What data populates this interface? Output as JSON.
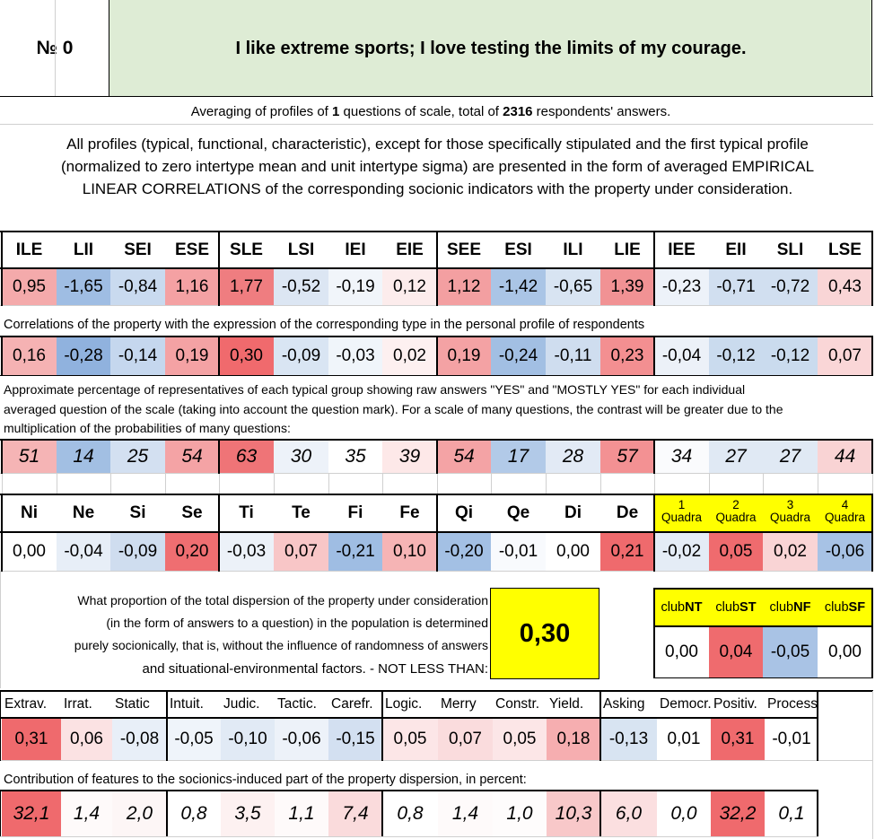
{
  "header": {
    "number_label": "№ 0",
    "question": "I like extreme sports; I love testing the limits of my courage."
  },
  "summary": {
    "prefix": "Averaging of profiles of ",
    "questions": "1",
    "middle": " questions of scale, total of ",
    "respondents": "2316",
    "suffix": " respondents' answers."
  },
  "description": [
    "All profiles (typical, functional, characteristic), except for those specifically stipulated and the first typical profile",
    "(normalized to zero intertype mean and unit intertype sigma) are presented in the form of averaged EMPIRICAL",
    "LINEAR CORRELATIONS of the corresponding socionic indicators with the property under consideration."
  ],
  "types": {
    "labels": [
      "ILE",
      "LII",
      "SEI",
      "ESE",
      "SLE",
      "LSI",
      "IEI",
      "EIE",
      "SEE",
      "ESI",
      "ILI",
      "LIE",
      "IEE",
      "EII",
      "SLI",
      "LSE"
    ],
    "values": [
      "0,95",
      "-1,65",
      "-0,84",
      "1,16",
      "1,77",
      "-0,52",
      "-0,19",
      "0,12",
      "1,12",
      "-1,42",
      "-0,65",
      "1,39",
      "-0,23",
      "-0,71",
      "-0,72",
      "0,43"
    ],
    "colors": [
      "#f4aaab",
      "#9fbde3",
      "#c9daef",
      "#f4a1a3",
      "#ef7d80",
      "#dce6f3",
      "#f1f5fa",
      "#fcecec",
      "#f39fa1",
      "#aac5e6",
      "#d8e4f2",
      "#f19294",
      "#edf2f9",
      "#d1dff0",
      "#d1dff0",
      "#f9d5d6"
    ]
  },
  "correlations": {
    "caption": "Correlations of the property with the expression of the corresponding type in the personal profile of respondents",
    "values": [
      "0,16",
      "-0,28",
      "-0,14",
      "0,19",
      "0,30",
      "-0,09",
      "-0,03",
      "0,02",
      "0,19",
      "-0,24",
      "-0,11",
      "0,23",
      "-0,04",
      "-0,12",
      "-0,12",
      "0,07"
    ],
    "colors": [
      "#f5b2b3",
      "#90b2de",
      "#c5d7ee",
      "#f4a2a4",
      "#f06a6d",
      "#d9e5f3",
      "#f0f5fa",
      "#fdf0f0",
      "#f4a2a4",
      "#a2bfe3",
      "#cfddef",
      "#f38f91",
      "#ecf1f8",
      "#cadbee",
      "#cadbee",
      "#fad6d7"
    ]
  },
  "percentages": {
    "caption_lines": [
      "Approximate percentage of representatives of each typical group showing raw answers \"YES\" and \"MOSTLY YES\" for each individual",
      "averaged question of the scale (taking into account the question mark). For a scale of many questions, the contrast will be greater due to the",
      "multiplication of the probabilities of many questions:"
    ],
    "values": [
      "51",
      "14",
      "25",
      "54",
      "63",
      "30",
      "35",
      "39",
      "54",
      "17",
      "28",
      "57",
      "34",
      "27",
      "27",
      "44"
    ],
    "colors": [
      "#f5b4b5",
      "#a2bfe3",
      "#d3e0f1",
      "#f4a3a5",
      "#ef7477",
      "#edf2f9",
      "#ffffff",
      "#fde8e8",
      "#f4a3a5",
      "#b2cae8",
      "#e2eaf5",
      "#f39193",
      "#fafbfd",
      "#e0e9f4",
      "#e0e9f4",
      "#f9d3d4"
    ]
  },
  "functions": {
    "labels": [
      "Ni",
      "Ne",
      "Si",
      "Se",
      "Ti",
      "Te",
      "Fi",
      "Fe",
      "Qi",
      "Qe",
      "Di",
      "De"
    ],
    "values": [
      "0,00",
      "-0,04",
      "-0,09",
      "0,20",
      "-0,03",
      "0,07",
      "-0,21",
      "0,10",
      "-0,20",
      "-0,01",
      "0,00",
      "0,21"
    ],
    "colors": [
      "#ffffff",
      "#e7eef7",
      "#cfddef",
      "#ef6e71",
      "#ecf1f8",
      "#f8c6c7",
      "#9fbde3",
      "#f6b4b5",
      "#a3c0e4",
      "#f8fafd",
      "#ffffff",
      "#ef6a6d"
    ]
  },
  "quadras": {
    "nums": [
      "1",
      "2",
      "3",
      "4"
    ],
    "word": "Quadra",
    "highlight": "#ffff00",
    "values": [
      "-0,02",
      "0,05",
      "0,02",
      "-0,06"
    ],
    "colors": [
      "#e4ecf6",
      "#ef6b6e",
      "#f9d4d5",
      "#a7c2e5"
    ]
  },
  "dispersion": {
    "lines": [
      "What proportion of the total dispersion of the property under consideration",
      "(in the form of answers to a question) in the population is determined",
      "purely socionically, that is, without the influence of randomness of answers",
      "and situational-environmental factors. - NOT LESS THAN:"
    ],
    "value": "0,30",
    "highlight": "#ffff00"
  },
  "clubs": {
    "labels": [
      {
        "pre": "club",
        "bold": "NT"
      },
      {
        "pre": "club",
        "bold": "ST"
      },
      {
        "pre": "club",
        "bold": "NF"
      },
      {
        "pre": "club",
        "bold": "SF"
      }
    ],
    "values": [
      "0,00",
      "0,04",
      "-0,05",
      "0,00"
    ],
    "colors": [
      "#ffffff",
      "#ef6b6e",
      "#a9c3e5",
      "#ffffff"
    ]
  },
  "traits": {
    "labels": [
      "Extrav.",
      "Irrat.",
      "Static",
      "Intuit.",
      "Judic.",
      "Tactic.",
      "Carefr.",
      "Logic.",
      "Merry",
      "Constr.",
      "Yield.",
      "Asking",
      "Democr.",
      "Positiv.",
      "Process"
    ],
    "values": [
      "0,31",
      "0,06",
      "-0,08",
      "-0,05",
      "-0,10",
      "-0,06",
      "-0,15",
      "0,05",
      "0,07",
      "0,05",
      "0,18",
      "-0,13",
      "0,01",
      "0,31",
      "-0,01"
    ],
    "colors": [
      "#ef6a6d",
      "#fbe2e3",
      "#e8eff8",
      "#eff4fa",
      "#e1eaf5",
      "#edf2f9",
      "#d3e0f1",
      "#fce6e7",
      "#fadcdd",
      "#fce6e7",
      "#f6aeb0",
      "#d8e4f2",
      "#ffffff",
      "#ef6a6d",
      "#ffffff"
    ]
  },
  "contribution": {
    "caption": "Contribution of features to the sociopnics-induced part of the property dispersion, in percent:",
    "values": [
      "32,1",
      "1,4",
      "2,0",
      "0,8",
      "3,5",
      "1,1",
      "7,4",
      "0,8",
      "1,4",
      "1,0",
      "10,3",
      "6,0",
      "0,0",
      "32,2",
      "0,1"
    ],
    "colors": [
      "#ef6a6d",
      "#fefafa",
      "#fdf6f6",
      "#ffffff",
      "#fdf1f1",
      "#fefafa",
      "#fadbdc",
      "#ffffff",
      "#fefafa",
      "#fefcfc",
      "#f8c8c9",
      "#fbdfe0",
      "#ffffff",
      "#ef6a6d",
      "#ffffff"
    ]
  }
}
